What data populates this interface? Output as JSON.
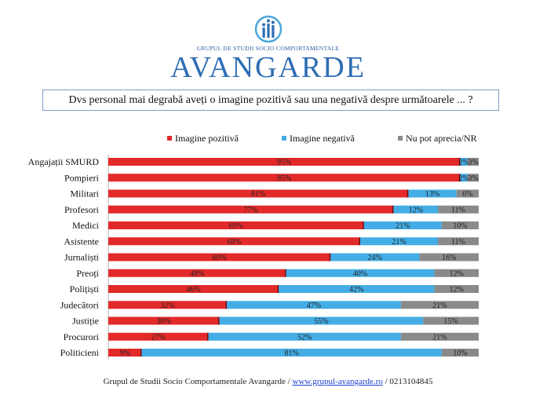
{
  "logo": {
    "subtitle": "GRUPUL DE STUDII SOCIO COMPORTAMENTALE",
    "name": "AVANGARDE"
  },
  "question": "Dvs personal mai degrabă aveți o imagine pozitivă sau una negativă despre următoarele ... ?",
  "footer": {
    "org": "Grupul de Studii Socio Comportamentale Avangarde",
    "sep1": " / ",
    "link": "www.grupul-avangarde.ro",
    "sep2": " / ",
    "phone": "0213104845"
  },
  "colors": {
    "positive": "#e32a2a",
    "negative": "#45ade6",
    "nr": "#8a8a8a",
    "brand": "#2e6db4"
  },
  "chart_data": {
    "type": "bar",
    "orientation": "horizontal",
    "stacked": true,
    "legend_position": "top",
    "categories": [
      "Angajații SMURD",
      "Pompieri",
      "Militari",
      "Profesori",
      "Medici",
      "Asistente",
      "Jurnaliști",
      "Preoți",
      "Polițiști",
      "Judecători",
      "Justiție",
      "Procurori",
      "Politicieni"
    ],
    "series": [
      {
        "name": "Imagine pozitivă",
        "color": "#e32a2a",
        "values": [
          95,
          95,
          81,
          77,
          69,
          68,
          60,
          48,
          46,
          32,
          30,
          27,
          9
        ]
      },
      {
        "name": "Imagine negativă",
        "color": "#45ade6",
        "values": [
          2,
          2,
          13,
          12,
          21,
          21,
          24,
          40,
          42,
          47,
          55,
          52,
          81
        ]
      },
      {
        "name": "Nu pot aprecia/NR",
        "color": "#8a8a8a",
        "values": [
          3,
          3,
          6,
          11,
          10,
          11,
          16,
          12,
          12,
          21,
          15,
          21,
          10
        ]
      }
    ],
    "unit": "%",
    "grid": false
  }
}
